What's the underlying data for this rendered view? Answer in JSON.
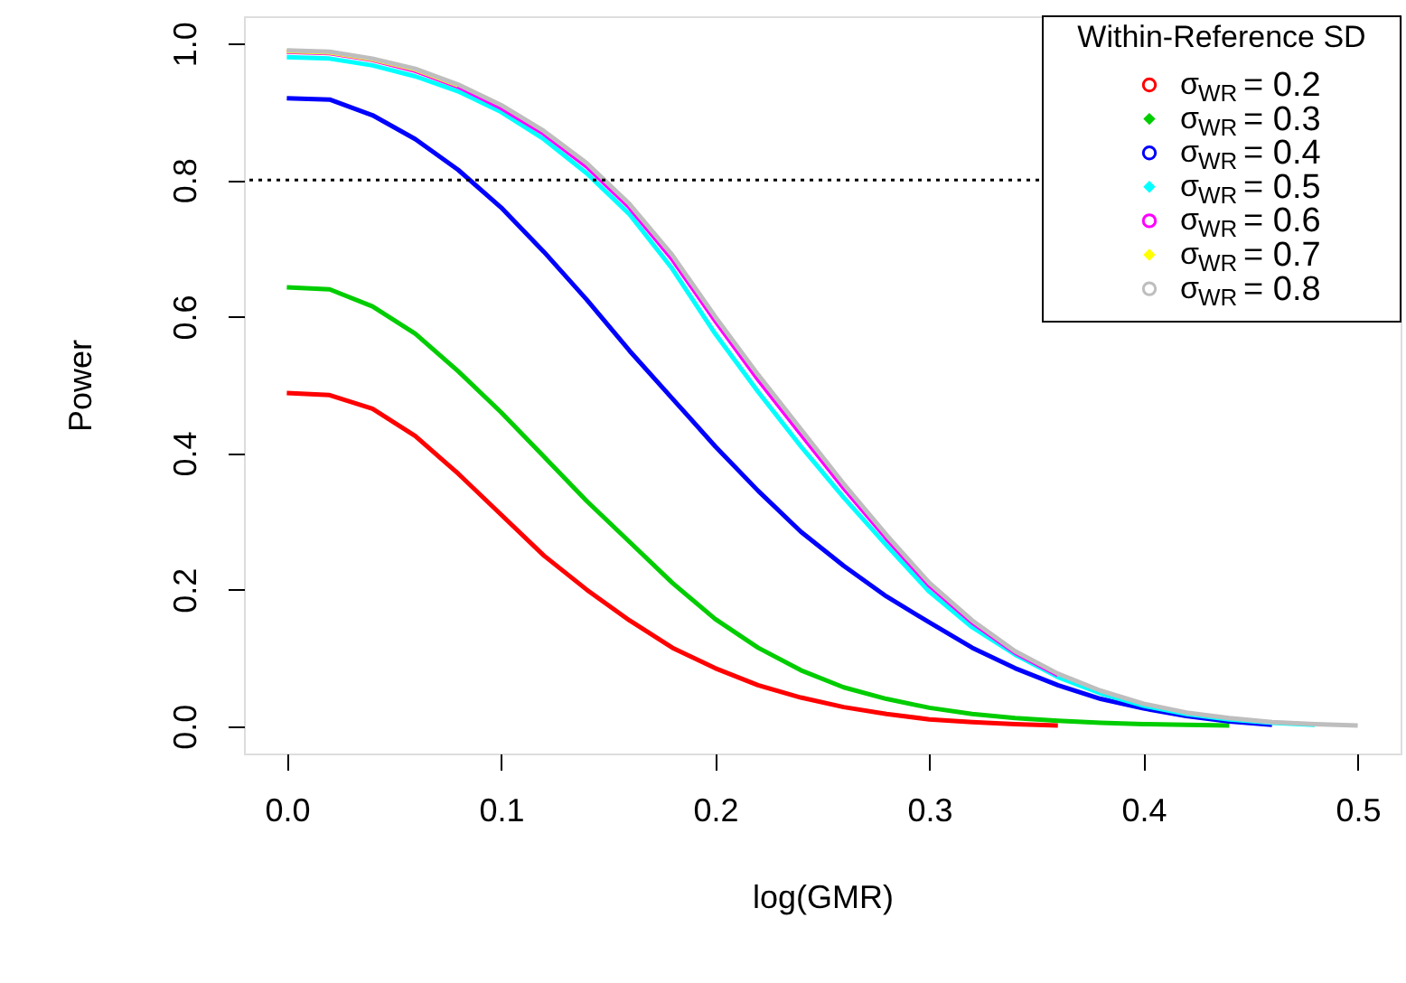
{
  "chart_data": {
    "type": "line",
    "xlabel": "log(GMR)",
    "ylabel": "Power",
    "legend_title": "Within-Reference SD",
    "legend": "top right",
    "grid": false,
    "xlim": [
      -0.02,
      0.52
    ],
    "ylim": [
      -0.04,
      1.04
    ],
    "xticks": [
      {
        "value": 0,
        "label": "0.0"
      },
      0.1,
      0.2,
      0.3,
      0.4,
      0.5
    ],
    "yticks": [
      {
        "value": 0,
        "label": "0.0"
      },
      0.2,
      0.4,
      0.6,
      0.8,
      {
        "value": 1,
        "label": "1.0"
      }
    ],
    "x": [
      0,
      0.02,
      0.04,
      0.06,
      0.08,
      0.1,
      0.12,
      0.14,
      0.16,
      0.18,
      0.2,
      0.22,
      0.24,
      0.26,
      0.28,
      0.3,
      0.32,
      0.34,
      0.36,
      0.38,
      0.4,
      0.42,
      0.44,
      0.46,
      0.48,
      0.5
    ],
    "ref_lines": [
      {
        "axis": "y",
        "value": 0.8,
        "line_style": "dotted",
        "color": "#000000"
      }
    ],
    "series": [
      {
        "name": "σ$_{WR}$ = 0.2",
        "color": "#ff0000",
        "values": [
          0.488,
          0.485,
          0.465,
          0.425,
          0.37,
          0.31,
          0.25,
          0.2,
          0.155,
          0.115,
          0.085,
          0.06,
          0.042,
          0.028,
          0.018,
          0.01,
          0.006,
          0.003,
          0.001,
          null,
          null,
          null,
          null,
          null,
          null,
          null
        ]
      },
      {
        "name": "σ$_{WR}$ = 0.3",
        "color": "#00cd00",
        "values": [
          0.643,
          0.64,
          0.615,
          0.575,
          0.52,
          0.46,
          0.395,
          0.33,
          0.27,
          0.21,
          0.157,
          0.115,
          0.082,
          0.057,
          0.04,
          0.027,
          0.018,
          0.012,
          0.008,
          0.005,
          0.003,
          0.002,
          0.001,
          null,
          null,
          null
        ]
      },
      {
        "name": "σ$_{WR}$ = 0.4",
        "color": "#0000ff",
        "values": [
          0.92,
          0.918,
          0.895,
          0.86,
          0.815,
          0.76,
          0.695,
          0.625,
          0.55,
          0.48,
          0.41,
          0.345,
          0.285,
          0.235,
          0.19,
          0.152,
          0.115,
          0.085,
          0.06,
          0.04,
          0.026,
          0.015,
          0.007,
          0.002,
          null,
          null
        ]
      },
      {
        "name": "σ$_{WR}$ = 0.5",
        "color": "#00ffff",
        "values": [
          0.98,
          0.978,
          0.968,
          0.952,
          0.93,
          0.9,
          0.86,
          0.81,
          0.75,
          0.67,
          0.575,
          0.49,
          0.41,
          0.335,
          0.265,
          0.197,
          0.145,
          0.105,
          0.072,
          0.048,
          0.03,
          0.018,
          0.01,
          0.005,
          0.002,
          null
        ]
      },
      {
        "name": "σ$_{WR}$ = 0.6",
        "color": "#ff00ff",
        "values": [
          0.988,
          0.986,
          0.976,
          0.96,
          0.937,
          0.906,
          0.868,
          0.82,
          0.76,
          0.684,
          0.594,
          0.508,
          0.428,
          0.349,
          0.275,
          0.206,
          0.152,
          0.108,
          0.075,
          null,
          null,
          null,
          null,
          null,
          null,
          null
        ]
      },
      {
        "name": "σ$_{WR}$ = 0.7",
        "color": "#ffff00",
        "values": [
          0.989,
          0.987,
          0.977,
          0.962,
          0.939,
          null,
          null,
          null,
          null,
          null,
          null,
          null,
          null,
          null,
          null,
          null,
          null,
          null,
          null,
          null,
          null,
          null,
          null,
          null,
          null,
          null
        ]
      },
      {
        "name": "σ$_{WR}$ = 0.8",
        "color": "#bebebe",
        "values": [
          0.99,
          0.988,
          0.978,
          0.963,
          0.94,
          0.91,
          0.872,
          0.825,
          0.765,
          0.69,
          0.6,
          0.515,
          0.435,
          0.355,
          0.28,
          0.21,
          0.155,
          0.11,
          0.077,
          0.052,
          0.033,
          0.02,
          0.012,
          0.006,
          0.003,
          0.001
        ]
      }
    ]
  }
}
